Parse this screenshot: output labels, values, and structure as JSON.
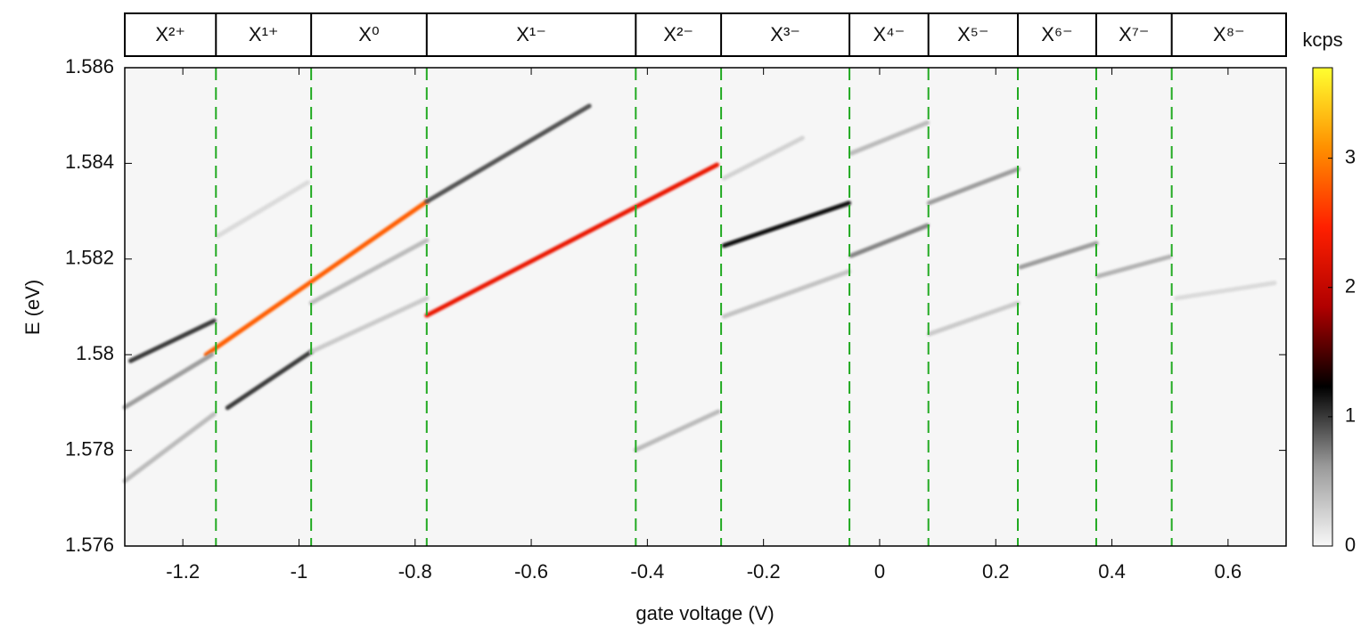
{
  "chart_data": {
    "type": "heatmap",
    "xlabel": "gate voltage (V)",
    "ylabel": "E (eV)",
    "colorbar_label": "kcps",
    "xlim": [
      -1.3,
      0.7
    ],
    "ylim": [
      1.576,
      1.586
    ],
    "xticks": [
      -1.2,
      -1,
      -0.8,
      -0.6,
      -0.4,
      -0.2,
      0,
      0.2,
      0.4,
      0.6
    ],
    "yticks": [
      1.576,
      1.578,
      1.58,
      1.582,
      1.584,
      1.586
    ],
    "clim": [
      0,
      3.7
    ],
    "cticks": [
      0,
      1,
      2,
      3
    ],
    "colormap": [
      "#f8f8f8",
      "#9a9a9a",
      "#000000",
      "#b00000",
      "#ff2000",
      "#ff9000",
      "#ffff30"
    ],
    "background": "#f6f6f6",
    "region_labels": [
      "X²⁺",
      "X¹⁺",
      "X⁰",
      "X¹⁻",
      "X²⁻",
      "X³⁻",
      "X⁴⁻",
      "X⁵⁻",
      "X⁶⁻",
      "X⁷⁻",
      "X⁸⁻"
    ],
    "region_boundaries": [
      -1.143,
      -0.979,
      -0.78,
      -0.42,
      -0.273,
      -0.052,
      0.084,
      0.238,
      0.373,
      0.503
    ],
    "boundary_color": "#22aa22",
    "features": [
      {
        "x": [
          -1.16,
          -0.78
        ],
        "y": [
          1.58,
          1.5832
        ],
        "intensity": 2.8
      },
      {
        "x": [
          -0.78,
          -0.5
        ],
        "y": [
          1.5832,
          1.5852
        ],
        "intensity": 0.9
      },
      {
        "x": [
          -0.78,
          -0.28
        ],
        "y": [
          1.58082,
          1.58397
        ],
        "intensity": 2.3
      },
      {
        "x": [
          -1.29,
          -1.146
        ],
        "y": [
          1.57987,
          1.58071
        ],
        "intensity": 1.0
      },
      {
        "x": [
          -1.3,
          -1.15
        ],
        "y": [
          1.5789,
          1.58
        ],
        "intensity": 0.6
      },
      {
        "x": [
          -1.123,
          -0.979
        ],
        "y": [
          1.57889,
          1.58006
        ],
        "intensity": 1.0
      },
      {
        "x": [
          -1.3,
          -1.146
        ],
        "y": [
          1.57736,
          1.57876
        ],
        "intensity": 0.4
      },
      {
        "x": [
          -0.979,
          -0.78
        ],
        "y": [
          1.58108,
          1.58239
        ],
        "intensity": 0.4
      },
      {
        "x": [
          -0.979,
          -0.78
        ],
        "y": [
          1.58006,
          1.58118
        ],
        "intensity": 0.3
      },
      {
        "x": [
          -1.14,
          -0.985
        ],
        "y": [
          1.58248,
          1.5836
        ],
        "intensity": 0.2
      },
      {
        "x": [
          -0.42,
          -0.278
        ],
        "y": [
          1.57801,
          1.57881
        ],
        "intensity": 0.4
      },
      {
        "x": [
          -0.268,
          -0.053
        ],
        "y": [
          1.58228,
          1.58317
        ],
        "intensity": 1.2
      },
      {
        "x": [
          -0.268,
          -0.053
        ],
        "y": [
          1.5808,
          1.58174
        ],
        "intensity": 0.35
      },
      {
        "x": [
          -0.268,
          -0.133
        ],
        "y": [
          1.58369,
          1.58453
        ],
        "intensity": 0.25
      },
      {
        "x": [
          -0.049,
          0.082
        ],
        "y": [
          1.58207,
          1.5827
        ],
        "intensity": 0.7
      },
      {
        "x": [
          -0.049,
          0.082
        ],
        "y": [
          1.58421,
          1.58485
        ],
        "intensity": 0.4
      },
      {
        "x": [
          0.085,
          0.238
        ],
        "y": [
          1.58317,
          1.58388
        ],
        "intensity": 0.6
      },
      {
        "x": [
          0.085,
          0.238
        ],
        "y": [
          1.58043,
          1.58108
        ],
        "intensity": 0.3
      },
      {
        "x": [
          0.243,
          0.373
        ],
        "y": [
          1.58183,
          1.58233
        ],
        "intensity": 0.6
      },
      {
        "x": [
          0.376,
          0.5
        ],
        "y": [
          1.58164,
          1.58205
        ],
        "intensity": 0.45
      },
      {
        "x": [
          0.511,
          0.68
        ],
        "y": [
          1.58118,
          1.5815
        ],
        "intensity": 0.2
      }
    ]
  }
}
